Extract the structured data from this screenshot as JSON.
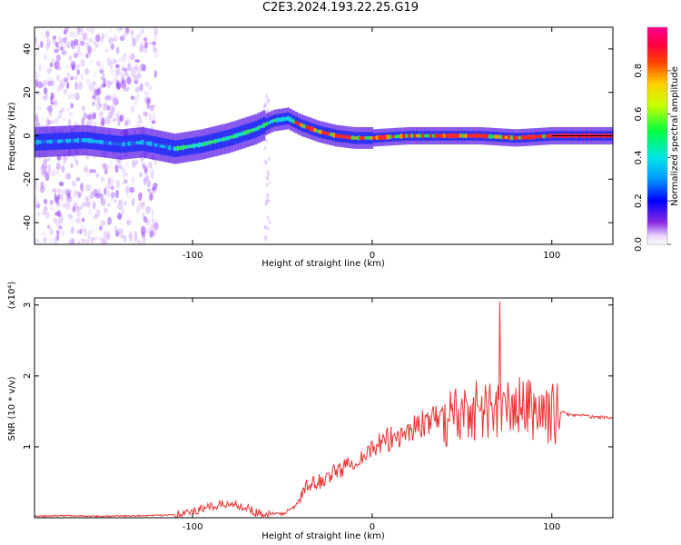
{
  "title": "C2E3.2024.193.22.25.G19",
  "chart_data": [
    {
      "type": "heatmap",
      "xlabel": "Height of straight line (km)",
      "ylabel": "Frequency (Hz)",
      "xlim": [
        -188,
        134
      ],
      "ylim": [
        -50,
        50
      ],
      "x_ticks": [
        -100,
        0,
        100
      ],
      "y_ticks": [
        -40,
        -20,
        0,
        20,
        40
      ],
      "colorbar": {
        "label": "Normalized spectral amplitude",
        "range": [
          0,
          1
        ],
        "ticks": [
          "0.0",
          "0.2",
          "0.4",
          "0.6",
          "0.8"
        ],
        "colormap": "rainbow (white-purple-blue-cyan-green-yellow-red-magenta)"
      },
      "center_track": {
        "x": [
          -188,
          -160,
          -140,
          -128,
          -110,
          -95,
          -80,
          -65,
          -55,
          -47,
          -40,
          -30,
          -20,
          -10,
          0,
          20,
          40,
          60,
          80,
          100,
          110,
          134
        ],
        "y": [
          -3,
          -2,
          -4,
          -3,
          -6,
          -4,
          -1,
          3,
          7,
          8,
          5,
          2,
          0,
          -1,
          -1,
          0,
          0,
          0,
          -1,
          0,
          0,
          0
        ]
      }
    },
    {
      "type": "line",
      "xlabel": "Height of straight line (km)",
      "ylabel": "SNR (10 * v/v)",
      "y_multiplier": "(x10⁴)",
      "xlim": [
        -188,
        134
      ],
      "ylim": [
        0,
        3.1
      ],
      "x_ticks": [
        -100,
        0,
        100
      ],
      "y_ticks": [
        1,
        2,
        3
      ],
      "line_color": "#ee3333",
      "series": [
        {
          "x": [
            -188,
            -170,
            -150,
            -130,
            -120,
            -110,
            -100,
            -95,
            -90,
            -85,
            -80,
            -75,
            -70,
            -65,
            -60,
            -55,
            -50,
            -45,
            -40,
            -38,
            -35,
            -30,
            -25,
            -20,
            -15,
            -10,
            -5,
            0,
            5,
            10,
            15,
            20,
            25,
            30,
            35,
            40,
            45,
            50,
            55,
            60,
            65,
            70,
            75,
            80,
            85,
            90,
            95,
            100,
            105,
            110,
            115,
            120,
            125,
            134
          ],
          "y": [
            0.02,
            0.03,
            0.02,
            0.03,
            0.03,
            0.05,
            0.08,
            0.12,
            0.15,
            0.18,
            0.2,
            0.18,
            0.15,
            0.08,
            0.05,
            0.04,
            0.06,
            0.12,
            0.25,
            0.4,
            0.45,
            0.5,
            0.58,
            0.65,
            0.72,
            0.8,
            0.88,
            0.98,
            1.02,
            1.1,
            1.18,
            1.22,
            1.3,
            1.35,
            1.38,
            1.42,
            1.45,
            1.48,
            1.55,
            1.5,
            1.52,
            1.55,
            1.5,
            1.58,
            1.55,
            1.52,
            1.5,
            1.45,
            1.5,
            1.45,
            1.45,
            1.43,
            1.42,
            1.41
          ]
        }
      ],
      "peak": {
        "x": 71,
        "y": 3.05
      }
    }
  ]
}
